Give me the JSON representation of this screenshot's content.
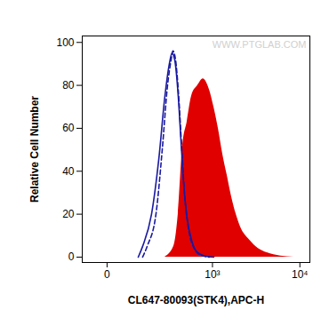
{
  "chart_data": {
    "type": "histogram",
    "x_label": "CL647-80093(STK4),APC-H",
    "y_label": "Relative Cell Number",
    "annotations": [
      "WWW.PTGLAB.COM"
    ],
    "log": "x",
    "xlim": [
      -64,
      12940
    ],
    "xticks": [
      0,
      {
        "value": 1000,
        "label": "10³"
      },
      {
        "value": 10000,
        "label": "10⁴"
      }
    ],
    "ylim": [
      -2.5,
      103
    ],
    "yticks": [
      0,
      20,
      40,
      60,
      80,
      100
    ],
    "grid": false,
    "series": [
      {
        "type": "area",
        "color": "#e00000",
        "x": [
          245,
          326,
          374,
          428,
          488,
          556,
          665,
          773,
          919,
          1038,
          1173,
          1322,
          1492,
          1679,
          1893,
          2128,
          2691,
          3398,
          4284,
          6070,
          8568
        ],
        "values": [
          0,
          5,
          20,
          52,
          63,
          75,
          80,
          83,
          78,
          70,
          60,
          48,
          38,
          28,
          20,
          14,
          8,
          4,
          2,
          0.5,
          0
        ]
      },
      {
        "type": "line",
        "color": "#1a1aa0",
        "line_style": "solid",
        "x": [
          88,
          107,
          153,
          198,
          245,
          283,
          308,
          335,
          374,
          405,
          439,
          488,
          556,
          631,
          812,
          1038
        ],
        "values": [
          0,
          5,
          20,
          45,
          75,
          90,
          95,
          92,
          75,
          55,
          35,
          18,
          8,
          3,
          0.5,
          0
        ]
      },
      {
        "type": "line",
        "color": "#1a1aa0",
        "line_style": "dashed",
        "x": [
          107,
          129,
          180,
          224,
          267,
          300,
          317,
          344,
          374,
          417,
          451,
          515,
          600,
          717,
          919
        ],
        "values": [
          0,
          5,
          20,
          50,
          80,
          92,
          96,
          92,
          78,
          50,
          30,
          12,
          4,
          1,
          0
        ]
      }
    ]
  }
}
